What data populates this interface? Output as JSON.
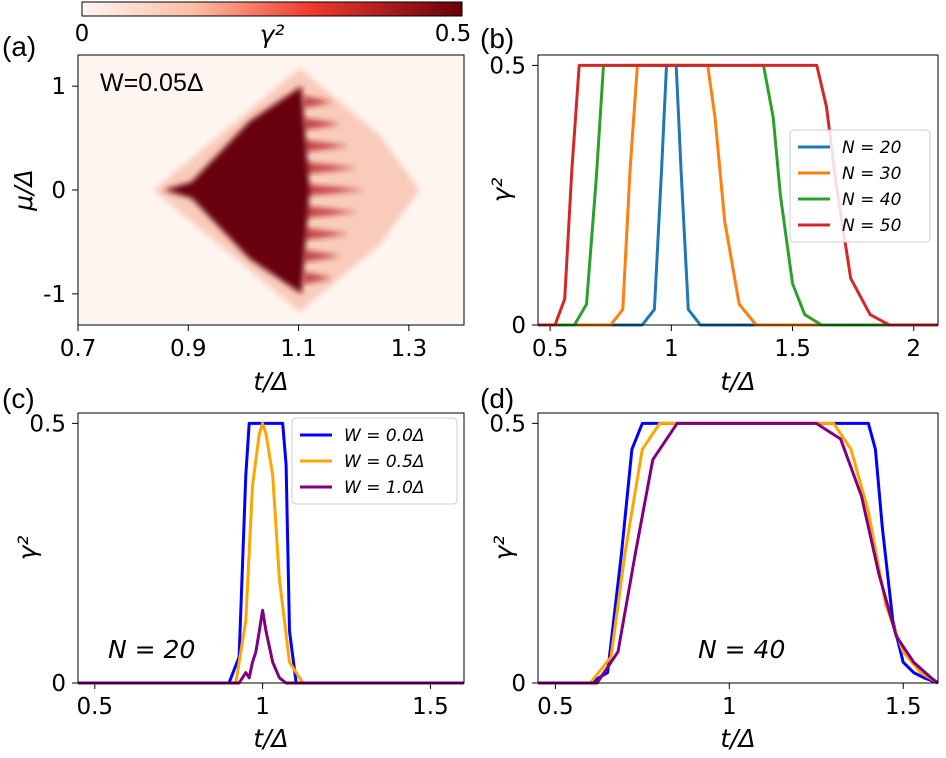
{
  "chart_data": [
    {
      "panel": "(a)",
      "type": "heatmap",
      "xlabel": "t/Δ",
      "ylabel": "μ/Δ",
      "xlim": [
        0.7,
        1.4
      ],
      "ylim": [
        -1.3,
        1.3
      ],
      "xticks": [
        "0.7",
        "0.9",
        "1.1",
        "1.3"
      ],
      "yticks": [
        "1",
        "0",
        "-1"
      ],
      "annotation": "W=0.05Δ",
      "colorbar": {
        "label": "γ²",
        "min_label": "0",
        "max_label": "0.5",
        "range": [
          0,
          0.5
        ]
      },
      "region": {
        "t_start": 0.855,
        "t_full": 1.12,
        "mu_half_width_at_full": 1.0,
        "value_inside": 0.5,
        "value_outside": 0
      }
    },
    {
      "panel": "(b)",
      "type": "line",
      "xlabel": "t/Δ",
      "ylabel": "γ²",
      "xlim": [
        0.45,
        2.1
      ],
      "ylim": [
        0,
        0.52
      ],
      "xticks": [
        "0.5",
        "1",
        "1.5",
        "2"
      ],
      "yticks": [
        "0",
        "0.5"
      ],
      "legend_position": "right",
      "series": [
        {
          "name": "N = 20",
          "color": "#1f77b4",
          "x": [
            0.45,
            0.88,
            0.93,
            0.96,
            0.98,
            1.0,
            1.02,
            1.04,
            1.07,
            1.12,
            2.1
          ],
          "values": [
            0,
            0,
            0.03,
            0.3,
            0.5,
            0.5,
            0.5,
            0.3,
            0.03,
            0,
            0
          ]
        },
        {
          "name": "N = 30",
          "color": "#ff7f0e",
          "x": [
            0.45,
            0.75,
            0.8,
            0.83,
            0.86,
            1.15,
            1.18,
            1.22,
            1.28,
            1.35,
            2.1
          ],
          "values": [
            0,
            0,
            0.03,
            0.3,
            0.5,
            0.5,
            0.4,
            0.2,
            0.04,
            0,
            0
          ]
        },
        {
          "name": "N = 40",
          "color": "#2ca02c",
          "x": [
            0.45,
            0.6,
            0.65,
            0.69,
            0.72,
            1.38,
            1.42,
            1.45,
            1.5,
            1.55,
            1.62,
            2.1
          ],
          "values": [
            0,
            0,
            0.04,
            0.28,
            0.5,
            0.5,
            0.4,
            0.25,
            0.08,
            0.02,
            0,
            0
          ]
        },
        {
          "name": "N = 50",
          "color": "#d62728",
          "x": [
            0.45,
            0.52,
            0.56,
            0.59,
            0.62,
            1.6,
            1.64,
            1.68,
            1.74,
            1.82,
            1.9,
            2.1
          ],
          "values": [
            0,
            0,
            0.05,
            0.3,
            0.5,
            0.5,
            0.42,
            0.27,
            0.09,
            0.02,
            0,
            0
          ]
        }
      ]
    },
    {
      "panel": "(c)",
      "type": "line",
      "xlabel": "t/Δ",
      "ylabel": "γ²",
      "xlim": [
        0.45,
        1.6
      ],
      "ylim": [
        0,
        0.52
      ],
      "xticks": [
        "0.5",
        "1",
        "1.5"
      ],
      "yticks": [
        "0",
        "0.5"
      ],
      "legend_position": "top-right",
      "annotation": "N = 20",
      "series": [
        {
          "name": "W = 0.0Δ",
          "color": "#0000ff",
          "x": [
            0.45,
            0.9,
            0.93,
            0.95,
            0.96,
            1.06,
            1.07,
            1.08,
            1.1,
            1.6
          ],
          "values": [
            0,
            0,
            0.05,
            0.4,
            0.5,
            0.5,
            0.42,
            0.1,
            0,
            0
          ]
        },
        {
          "name": "W = 0.5Δ",
          "color": "#ffa500",
          "x": [
            0.45,
            0.92,
            0.95,
            0.97,
            0.99,
            1.0,
            1.01,
            1.03,
            1.05,
            1.08,
            1.12,
            1.6
          ],
          "values": [
            0,
            0,
            0.12,
            0.38,
            0.48,
            0.5,
            0.48,
            0.4,
            0.2,
            0.04,
            0,
            0
          ]
        },
        {
          "name": "W = 1.0Δ",
          "color": "#800080",
          "x": [
            0.45,
            0.93,
            0.95,
            0.96,
            0.97,
            0.98,
            0.99,
            1.0,
            1.01,
            1.03,
            1.05,
            1.07,
            1.6
          ],
          "values": [
            0,
            0,
            0.02,
            0.01,
            0.04,
            0.06,
            0.1,
            0.14,
            0.1,
            0.04,
            0.01,
            0,
            0
          ]
        }
      ]
    },
    {
      "panel": "(d)",
      "type": "line",
      "xlabel": "t/Δ",
      "ylabel": "γ²",
      "xlim": [
        0.45,
        1.6
      ],
      "ylim": [
        0,
        0.52
      ],
      "xticks": [
        "0.5",
        "1",
        "1.5"
      ],
      "yticks": [
        "0",
        "0.5"
      ],
      "annotation": "N = 40",
      "series": [
        {
          "name": "W = 0.0Δ",
          "color": "#0000ff",
          "x": [
            0.45,
            0.6,
            0.65,
            0.69,
            0.72,
            0.75,
            1.4,
            1.42,
            1.44,
            1.47,
            1.5,
            1.53,
            1.56,
            1.6
          ],
          "values": [
            0,
            0,
            0.02,
            0.25,
            0.45,
            0.5,
            0.5,
            0.45,
            0.3,
            0.12,
            0.04,
            0.02,
            0.01,
            0
          ]
        },
        {
          "name": "W = 0.5Δ",
          "color": "#ffa500",
          "x": [
            0.45,
            0.6,
            0.66,
            0.7,
            0.75,
            0.8,
            1.3,
            1.35,
            1.4,
            1.45,
            1.5,
            1.55,
            1.6
          ],
          "values": [
            0,
            0,
            0.05,
            0.25,
            0.45,
            0.5,
            0.5,
            0.45,
            0.33,
            0.15,
            0.06,
            0.02,
            0
          ]
        },
        {
          "name": "W = 1.0Δ",
          "color": "#800080",
          "x": [
            0.45,
            0.62,
            0.68,
            0.73,
            0.78,
            0.85,
            1.25,
            1.32,
            1.38,
            1.43,
            1.48,
            1.53,
            1.58,
            1.6
          ],
          "values": [
            0,
            0,
            0.06,
            0.25,
            0.43,
            0.5,
            0.5,
            0.47,
            0.36,
            0.21,
            0.09,
            0.04,
            0.01,
            0
          ]
        }
      ]
    }
  ]
}
